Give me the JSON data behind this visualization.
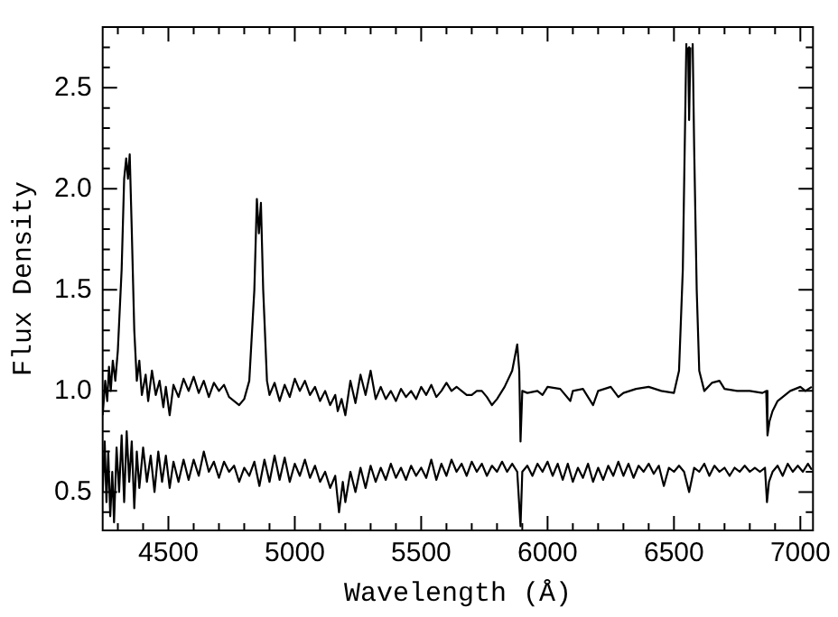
{
  "chart_data": {
    "type": "line",
    "xlabel": "Wavelength (Å)",
    "ylabel": "Flux Density",
    "xlim": [
      4240,
      7050
    ],
    "ylim": [
      0.31,
      2.8
    ],
    "xticks": [
      {
        "value": 4300,
        "label": null
      },
      {
        "value": 4400,
        "label": null
      },
      4500,
      {
        "value": 4600,
        "label": null
      },
      {
        "value": 4700,
        "label": null
      },
      {
        "value": 4800,
        "label": null
      },
      {
        "value": 4900,
        "label": null
      },
      5000,
      {
        "value": 5100,
        "label": null
      },
      {
        "value": 5200,
        "label": null
      },
      {
        "value": 5300,
        "label": null
      },
      {
        "value": 5400,
        "label": null
      },
      5500,
      {
        "value": 5600,
        "label": null
      },
      {
        "value": 5700,
        "label": null
      },
      {
        "value": 5800,
        "label": null
      },
      {
        "value": 5900,
        "label": null
      },
      6000,
      {
        "value": 6100,
        "label": null
      },
      {
        "value": 6200,
        "label": null
      },
      {
        "value": 6300,
        "label": null
      },
      {
        "value": 6400,
        "label": null
      },
      6500,
      {
        "value": 6600,
        "label": null
      },
      {
        "value": 6700,
        "label": null
      },
      {
        "value": 6800,
        "label": null
      },
      {
        "value": 6900,
        "label": null
      },
      7000
    ],
    "yticks": [
      {
        "value": 0.4,
        "label": null
      },
      "0.5",
      {
        "value": 0.6,
        "label": null
      },
      {
        "value": 0.7,
        "label": null
      },
      {
        "value": 0.8,
        "label": null
      },
      {
        "value": 0.9,
        "label": null
      },
      {
        "value": 1.0,
        "label": "1.0"
      },
      {
        "value": 1.1,
        "label": null
      },
      {
        "value": 1.2,
        "label": null
      },
      {
        "value": 1.3,
        "label": null
      },
      {
        "value": 1.4,
        "label": null
      },
      {
        "value": 1.5,
        "label": "1.5"
      },
      {
        "value": 1.6,
        "label": null
      },
      {
        "value": 1.7,
        "label": null
      },
      {
        "value": 1.8,
        "label": null
      },
      {
        "value": 1.9,
        "label": null
      },
      {
        "value": 2.0,
        "label": "2.0"
      },
      {
        "value": 2.1,
        "label": null
      },
      {
        "value": 2.2,
        "label": null
      },
      {
        "value": 2.3,
        "label": null
      },
      {
        "value": 2.4,
        "label": null
      },
      {
        "value": 2.5,
        "label": "2.5"
      },
      {
        "value": 2.6,
        "label": null
      },
      {
        "value": 2.7,
        "label": null
      }
    ],
    "grid": false,
    "legend": false,
    "marker": "none",
    "line_style": "solid",
    "series": [
      {
        "color": "#000000",
        "x": [
          4240,
          4250,
          4258,
          4265,
          4272,
          4280,
          4290,
          4300,
          4315,
          4325,
          4333,
          4340,
          4347,
          4355,
          4365,
          4375,
          4385,
          4395,
          4410,
          4420,
          4435,
          4450,
          4465,
          4480,
          4490,
          4505,
          4520,
          4540,
          4560,
          4580,
          4600,
          4620,
          4640,
          4660,
          4680,
          4700,
          4720,
          4740,
          4760,
          4780,
          4800,
          4820,
          4840,
          4850,
          4858,
          4866,
          4875,
          4890,
          4900,
          4920,
          4940,
          4960,
          4980,
          5000,
          5020,
          5040,
          5060,
          5080,
          5100,
          5120,
          5140,
          5160,
          5170,
          5185,
          5200,
          5220,
          5240,
          5260,
          5280,
          5300,
          5320,
          5340,
          5360,
          5380,
          5400,
          5420,
          5440,
          5460,
          5480,
          5500,
          5520,
          5540,
          5560,
          5580,
          5600,
          5620,
          5640,
          5660,
          5680,
          5700,
          5720,
          5740,
          5760,
          5780,
          5800,
          5830,
          5860,
          5880,
          5888,
          5893,
          5900,
          5920,
          5960,
          5980,
          6000,
          6050,
          6090,
          6100,
          6140,
          6180,
          6200,
          6250,
          6280,
          6300,
          6350,
          6400,
          6450,
          6500,
          6520,
          6535,
          6545,
          6549,
          6552,
          6556,
          6560,
          6565,
          6570,
          6574,
          6580,
          6590,
          6600,
          6620,
          6650,
          6680,
          6700,
          6750,
          6800,
          6850,
          6865,
          6870,
          6878,
          6890,
          6910,
          6940,
          6960,
          6980,
          7000,
          7020,
          7045
        ],
        "values": [
          0.88,
          1.05,
          0.95,
          1.12,
          1.0,
          1.15,
          1.05,
          1.2,
          1.6,
          2.05,
          2.15,
          2.05,
          2.17,
          1.8,
          1.3,
          1.05,
          1.15,
          0.98,
          1.08,
          0.95,
          1.1,
          0.98,
          1.05,
          0.92,
          1.02,
          0.88,
          1.03,
          0.97,
          1.06,
          1.0,
          1.07,
          0.99,
          1.05,
          0.97,
          1.04,
          1.0,
          1.03,
          0.97,
          0.95,
          0.93,
          0.96,
          1.05,
          1.5,
          1.95,
          1.78,
          1.93,
          1.5,
          1.05,
          0.98,
          1.04,
          0.95,
          1.03,
          0.97,
          1.06,
          1.0,
          1.05,
          0.98,
          1.02,
          0.95,
          1.0,
          0.93,
          0.98,
          0.9,
          0.96,
          0.88,
          1.05,
          0.94,
          1.08,
          0.98,
          1.1,
          0.96,
          1.02,
          0.96,
          1.0,
          0.95,
          1.01,
          0.97,
          1.0,
          0.96,
          1.02,
          0.98,
          1.03,
          0.97,
          1.0,
          1.04,
          1.0,
          1.02,
          1.0,
          0.98,
          0.98,
          1.0,
          1.0,
          0.97,
          0.93,
          0.96,
          1.02,
          1.1,
          1.23,
          1.1,
          0.75,
          1.0,
          0.99,
          1.0,
          0.98,
          1.02,
          1.01,
          0.95,
          1.0,
          1.01,
          0.93,
          1.0,
          1.02,
          0.97,
          0.99,
          1.01,
          1.02,
          1.0,
          0.99,
          1.1,
          1.6,
          2.4,
          2.72,
          null,
          2.7,
          2.34,
          2.7,
          null,
          2.72,
          2.2,
          1.5,
          1.1,
          1.0,
          1.04,
          1.05,
          1.01,
          1.0,
          1.0,
          0.99,
          1.0,
          0.78,
          0.85,
          0.9,
          0.95,
          0.98,
          1.0,
          1.01,
          1.02,
          1.0,
          1.02
        ]
      },
      {
        "color": "#000000",
        "x": [
          4240,
          4248,
          4255,
          4262,
          4270,
          4278,
          4285,
          4295,
          4305,
          4315,
          4325,
          4335,
          4345,
          4355,
          4365,
          4375,
          4385,
          4400,
          4415,
          4430,
          4445,
          4460,
          4475,
          4490,
          4505,
          4520,
          4540,
          4560,
          4580,
          4600,
          4620,
          4640,
          4660,
          4680,
          4700,
          4720,
          4740,
          4760,
          4780,
          4800,
          4820,
          4840,
          4860,
          4880,
          4900,
          4920,
          4940,
          4960,
          4980,
          5000,
          5020,
          5040,
          5060,
          5080,
          5100,
          5120,
          5140,
          5160,
          5175,
          5190,
          5200,
          5220,
          5240,
          5260,
          5280,
          5300,
          5320,
          5340,
          5360,
          5380,
          5400,
          5420,
          5440,
          5460,
          5480,
          5500,
          5520,
          5540,
          5560,
          5580,
          5600,
          5620,
          5640,
          5660,
          5680,
          5700,
          5720,
          5740,
          5760,
          5780,
          5800,
          5820,
          5840,
          5860,
          5880,
          5893,
          5900,
          5920,
          5940,
          5960,
          5980,
          6000,
          6020,
          6040,
          6060,
          6080,
          6100,
          6120,
          6140,
          6160,
          6180,
          6200,
          6220,
          6240,
          6260,
          6280,
          6300,
          6320,
          6340,
          6360,
          6380,
          6400,
          6420,
          6440,
          6460,
          6480,
          6500,
          6520,
          6540,
          6560,
          6580,
          6600,
          6620,
          6640,
          6660,
          6680,
          6700,
          6720,
          6740,
          6760,
          6780,
          6800,
          6820,
          6840,
          6860,
          6868,
          6876,
          6890,
          6910,
          6930,
          6950,
          6970,
          6990,
          7010,
          7030,
          7045
        ],
        "values": [
          0.5,
          0.75,
          0.45,
          0.7,
          0.38,
          0.6,
          0.35,
          0.72,
          0.5,
          0.78,
          0.45,
          0.8,
          0.55,
          0.75,
          0.42,
          0.7,
          0.52,
          0.72,
          0.55,
          0.68,
          0.5,
          0.7,
          0.55,
          0.68,
          0.52,
          0.65,
          0.55,
          0.66,
          0.56,
          0.66,
          0.58,
          0.7,
          0.6,
          0.65,
          0.57,
          0.65,
          0.6,
          0.63,
          0.55,
          0.62,
          0.58,
          0.65,
          0.53,
          0.66,
          0.55,
          0.68,
          0.56,
          0.67,
          0.55,
          0.64,
          0.58,
          0.66,
          0.57,
          0.63,
          0.55,
          0.6,
          0.52,
          0.58,
          0.4,
          0.55,
          0.45,
          0.6,
          0.5,
          0.62,
          0.52,
          0.63,
          0.55,
          0.62,
          0.56,
          0.64,
          0.57,
          0.62,
          0.56,
          0.63,
          0.58,
          0.62,
          0.57,
          0.66,
          0.56,
          0.64,
          0.58,
          0.66,
          0.6,
          0.64,
          0.58,
          0.65,
          0.6,
          0.64,
          0.58,
          0.63,
          0.6,
          0.65,
          0.6,
          0.64,
          0.6,
          0.33,
          0.6,
          0.63,
          0.58,
          0.64,
          0.6,
          0.65,
          0.58,
          0.64,
          0.56,
          0.64,
          0.55,
          0.62,
          0.57,
          0.64,
          0.55,
          0.62,
          0.56,
          0.63,
          0.58,
          0.65,
          0.58,
          0.64,
          0.57,
          0.63,
          0.6,
          0.64,
          0.59,
          0.63,
          0.53,
          0.62,
          0.6,
          0.63,
          0.6,
          0.5,
          0.62,
          0.6,
          0.64,
          0.58,
          0.63,
          0.6,
          0.62,
          0.58,
          0.62,
          0.6,
          0.63,
          0.6,
          0.62,
          0.6,
          0.62,
          0.45,
          0.55,
          0.6,
          0.63,
          0.58,
          0.64,
          0.6,
          0.63,
          0.6,
          0.64,
          0.61
        ]
      }
    ]
  }
}
